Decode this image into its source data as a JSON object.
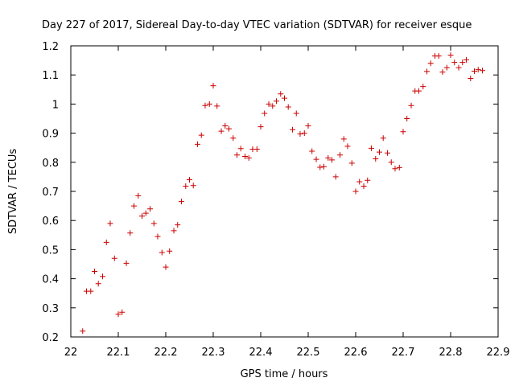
{
  "chart_data": {
    "type": "scatter",
    "title": "Day 227 of 2017, Sidereal Day-to-day VTEC variation (SDTVAR) for receiver esque",
    "xlabel": "GPS time / hours",
    "ylabel": "SDTVAR / TECUs",
    "xlim": [
      22.0,
      22.9
    ],
    "ylim": [
      0.2,
      1.2
    ],
    "xticks": [
      "22",
      "22.1",
      "22.2",
      "22.3",
      "22.4",
      "22.5",
      "22.6",
      "22.7",
      "22.8",
      "22.9"
    ],
    "yticks": [
      "0.2",
      "0.3",
      "0.4",
      "0.5",
      "0.6",
      "0.7",
      "0.8",
      "0.9",
      "1",
      "1.1",
      "1.2"
    ],
    "marker": "plus",
    "color": "#cc0000",
    "grid": false,
    "series": [
      {
        "name": "SDTVAR",
        "x": [
          22.025,
          22.033,
          22.042,
          22.05,
          22.058,
          22.067,
          22.075,
          22.083,
          22.092,
          22.1,
          22.108,
          22.117,
          22.125,
          22.133,
          22.142,
          22.15,
          22.158,
          22.167,
          22.175,
          22.183,
          22.192,
          22.2,
          22.208,
          22.217,
          22.225,
          22.233,
          22.242,
          22.25,
          22.258,
          22.267,
          22.275,
          22.283,
          22.292,
          22.3,
          22.308,
          22.317,
          22.325,
          22.333,
          22.342,
          22.35,
          22.358,
          22.367,
          22.375,
          22.383,
          22.392,
          22.4,
          22.408,
          22.417,
          22.425,
          22.433,
          22.442,
          22.45,
          22.458,
          22.467,
          22.475,
          22.483,
          22.492,
          22.5,
          22.508,
          22.517,
          22.525,
          22.533,
          22.542,
          22.55,
          22.558,
          22.567,
          22.575,
          22.583,
          22.592,
          22.6,
          22.608,
          22.617,
          22.625,
          22.633,
          22.642,
          22.65,
          22.658,
          22.667,
          22.675,
          22.683,
          22.692,
          22.7,
          22.708,
          22.717,
          22.725,
          22.733,
          22.742,
          22.75,
          22.758,
          22.767,
          22.775,
          22.783,
          22.792,
          22.8,
          22.808,
          22.817,
          22.825,
          22.833,
          22.842,
          22.85,
          22.858,
          22.867
        ],
        "y": [
          0.22,
          0.357,
          0.357,
          0.425,
          0.383,
          0.408,
          0.525,
          0.59,
          0.47,
          0.278,
          0.285,
          0.453,
          0.557,
          0.65,
          0.685,
          0.615,
          0.625,
          0.64,
          0.59,
          0.545,
          0.49,
          0.44,
          0.495,
          0.565,
          0.585,
          0.665,
          0.718,
          0.74,
          0.72,
          0.862,
          0.893,
          0.995,
          1.0,
          1.063,
          0.993,
          0.907,
          0.925,
          0.915,
          0.883,
          0.825,
          0.847,
          0.82,
          0.815,
          0.845,
          0.845,
          0.922,
          0.968,
          1.0,
          0.993,
          1.01,
          1.035,
          1.02,
          0.99,
          0.912,
          0.968,
          0.897,
          0.9,
          0.925,
          0.838,
          0.81,
          0.783,
          0.785,
          0.815,
          0.808,
          0.75,
          0.825,
          0.88,
          0.855,
          0.797,
          0.7,
          0.733,
          0.718,
          0.738,
          0.848,
          0.812,
          0.835,
          0.883,
          0.832,
          0.8,
          0.778,
          0.782,
          0.905,
          0.95,
          0.995,
          1.045,
          1.045,
          1.06,
          1.112,
          1.14,
          1.165,
          1.165,
          1.11,
          1.125,
          1.168,
          1.143,
          1.125,
          1.143,
          1.152,
          1.088,
          1.113,
          1.118,
          1.115
        ]
      }
    ]
  }
}
